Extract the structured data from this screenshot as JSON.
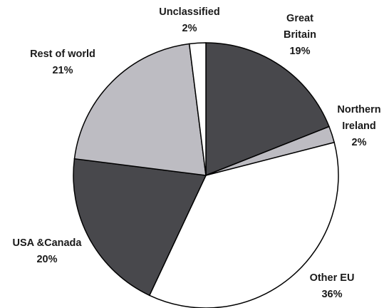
{
  "chart_data": {
    "type": "pie",
    "title": "",
    "slices": [
      {
        "label": [
          "Great",
          "Britain"
        ],
        "value": 19,
        "value_label": "19%",
        "color": "#48484c"
      },
      {
        "label": [
          "Northern",
          "Ireland"
        ],
        "value": 2,
        "value_label": "2%",
        "color": "#bdbcc2"
      },
      {
        "label": [
          "Other EU"
        ],
        "value": 36,
        "value_label": "36%",
        "color": "#ffffff"
      },
      {
        "label": [
          "USA &Canada"
        ],
        "value": 20,
        "value_label": "20%",
        "color": "#48484c"
      },
      {
        "label": [
          "Rest of world"
        ],
        "value": 21,
        "value_label": "21%",
        "color": "#bdbcc2"
      },
      {
        "label": [
          "Unclassified"
        ],
        "value": 2,
        "value_label": "2%",
        "color": "#ffffff"
      }
    ],
    "start_angle_deg": 0,
    "direction": "clockwise",
    "legend": "none (labels placed beside slices)"
  }
}
